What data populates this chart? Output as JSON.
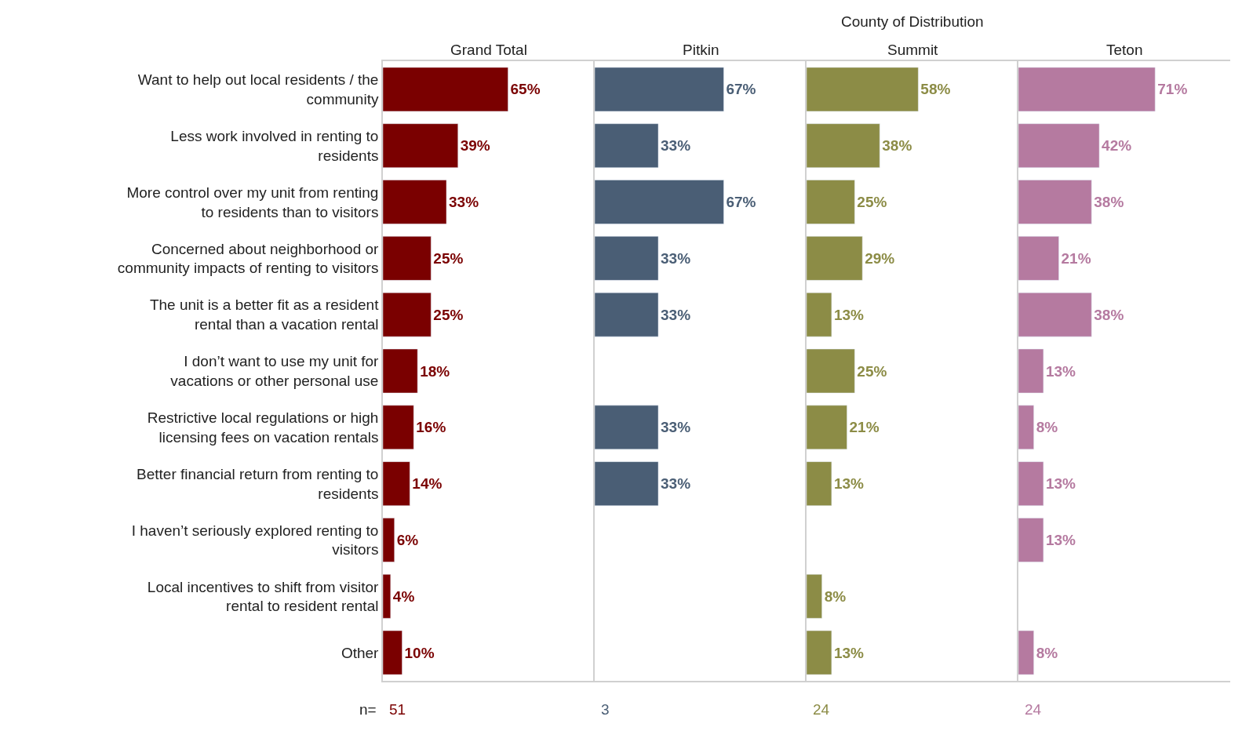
{
  "chart_data": [
    {
      "type": "bar",
      "orientation": "horizontal",
      "title": "Grand Total",
      "tick_labels": "y",
      "xlim": [
        0,
        110
      ],
      "categories": [
        "Want to help out local residents / the community",
        "Less work involved in renting to residents",
        "More control over my unit from renting to residents than to visitors",
        "Concerned about neighborhood or community impacts of renting to visitors",
        "The unit is a better fit as a resident rental than a vacation rental",
        "I don’t want to use my unit for vacations or other personal use",
        "Restrictive local regulations or high licensing fees on vacation rentals",
        "Better financial return from renting to residents",
        "I haven’t seriously explored renting to visitors",
        "Local incentives to shift from visitor rental to resident rental",
        "Other"
      ],
      "series": [
        {
          "color": "#7a0000",
          "values": [
            65,
            39,
            33,
            25,
            25,
            18,
            16,
            14,
            6,
            4,
            10
          ],
          "value_labels": [
            "65%",
            "39%",
            "33%",
            "25%",
            "25%",
            "18%",
            "16%",
            "14%",
            "6%",
            "4%",
            "10%"
          ]
        }
      ],
      "annotations": [
        "n=",
        "51"
      ]
    },
    {
      "type": "bar",
      "orientation": "horizontal",
      "title": "Pitkin",
      "tick_labels": false,
      "xlim": [
        0,
        110
      ],
      "categories": [
        null,
        null,
        null,
        null,
        null,
        null,
        null,
        null,
        null,
        null,
        null
      ],
      "series": [
        {
          "color": "#4a5e75",
          "values": [
            67,
            33,
            67,
            33,
            33,
            null,
            33,
            33,
            null,
            null,
            null
          ],
          "value_labels": [
            "67%",
            "33%",
            "67%",
            "33%",
            "33%",
            null,
            "33%",
            "33%",
            null,
            null,
            null
          ]
        }
      ],
      "annotations": [
        "3"
      ]
    },
    {
      "type": "bar",
      "orientation": "horizontal",
      "title": "Summit",
      "subtitle": "County of Distribution",
      "tick_labels": false,
      "xlim": [
        0,
        110
      ],
      "categories": [
        null,
        null,
        null,
        null,
        null,
        null,
        null,
        null,
        null,
        null,
        null
      ],
      "series": [
        {
          "color": "#8c8c46",
          "values": [
            58,
            38,
            25,
            29,
            13,
            25,
            21,
            13,
            null,
            8,
            13
          ],
          "value_labels": [
            "58%",
            "38%",
            "25%",
            "29%",
            "13%",
            "25%",
            "21%",
            "13%",
            null,
            "8%",
            "13%"
          ]
        }
      ],
      "annotations": [
        "24"
      ]
    },
    {
      "type": "bar",
      "orientation": "horizontal",
      "title": "Teton",
      "tick_labels": false,
      "xlim": [
        0,
        110
      ],
      "categories": [
        null,
        null,
        null,
        null,
        null,
        null,
        null,
        null,
        null,
        null,
        null
      ],
      "series": [
        {
          "color": "#b57aa0",
          "values": [
            71,
            42,
            38,
            21,
            38,
            13,
            8,
            13,
            13,
            null,
            8
          ],
          "value_labels": [
            "71%",
            "42%",
            "38%",
            "21%",
            "38%",
            "13%",
            "8%",
            "13%",
            "13%",
            null,
            "8%"
          ]
        }
      ],
      "annotations": [
        "24"
      ]
    }
  ]
}
